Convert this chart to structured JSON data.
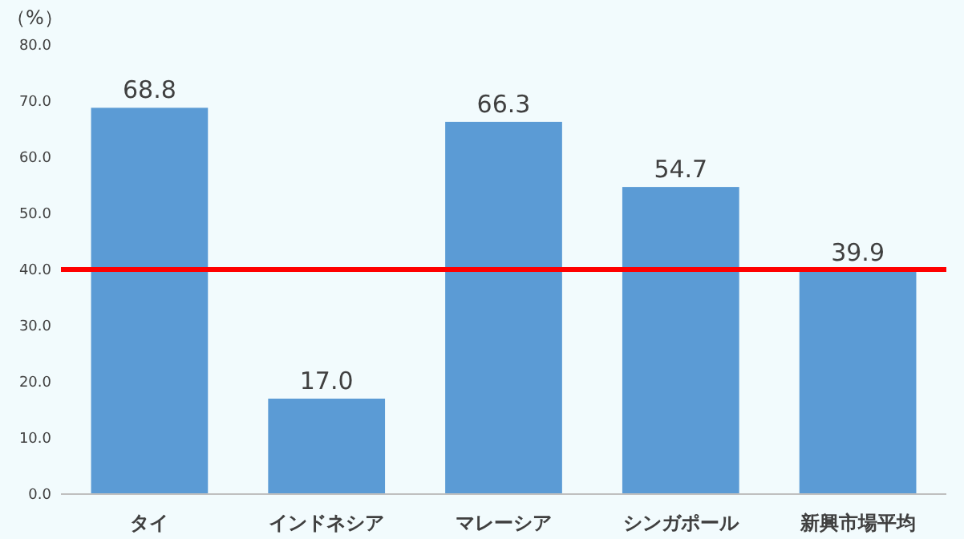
{
  "chart_data": {
    "type": "bar",
    "ylabel": "（%）",
    "categories": [
      "タイ",
      "インドネシア",
      "マレーシア",
      "シンガポール",
      "新興市場平均"
    ],
    "values": [
      68.8,
      17.0,
      66.3,
      54.7,
      39.9
    ],
    "value_labels": [
      "68.8",
      "17.0",
      "66.3",
      "54.7",
      "39.9"
    ],
    "color": "#5b9bd5",
    "ylim": [
      0,
      80
    ],
    "yticks": [
      {
        "value": 0,
        "label": "0.0"
      },
      {
        "value": 10,
        "label": "10.0"
      },
      {
        "value": 20,
        "label": "20.0"
      },
      {
        "value": 30,
        "label": "30.0"
      },
      {
        "value": 40,
        "label": "40.0"
      },
      {
        "value": 50,
        "label": "50.0"
      },
      {
        "value": 60,
        "label": "60.0"
      },
      {
        "value": 70,
        "label": "70.0"
      },
      {
        "value": 80,
        "label": "80.0"
      }
    ],
    "ref_lines": [
      {
        "axis": "y",
        "value": 40,
        "color": "#ff0000"
      }
    ]
  }
}
